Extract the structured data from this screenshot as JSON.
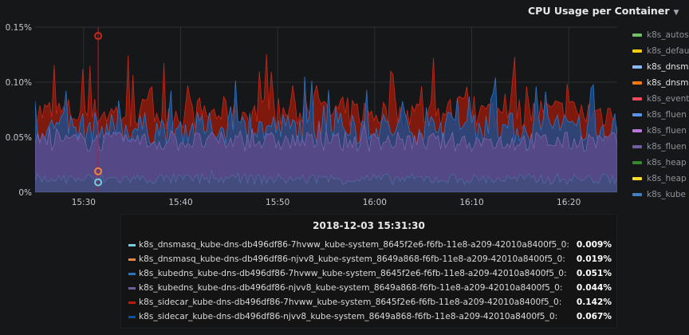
{
  "panel": {
    "title": "CPU Usage per Container",
    "caret_icon": "caret-down-icon"
  },
  "chart_data": {
    "type": "area",
    "ylim": [
      0,
      0.15
    ],
    "y_unit": "%",
    "x_range": [
      "2018-12-03 15:25:00",
      "2018-12-03 16:25:00"
    ],
    "x_ticks": [
      "15:30",
      "15:40",
      "15:50",
      "16:00",
      "16:10",
      "16:20"
    ],
    "y_ticks": [
      "0%",
      "0.05%",
      "0.10%",
      "0.15%"
    ],
    "grid": true,
    "legend_position": "right",
    "series_colors": [
      "#73bf69",
      "#f2cc0c",
      "#8ab8ff",
      "#ff780a",
      "#f2495c",
      "#5794f2",
      "#b877d9",
      "#705da0",
      "#37872d",
      "#fade2a",
      "#447ebc"
    ],
    "hover_time": "2018-12-03 15:31:30"
  },
  "legend": {
    "items": [
      {
        "label": "k8s_autos",
        "color": "#73bf69",
        "bold": false
      },
      {
        "label": "k8s_defau",
        "color": "#f2cc0c",
        "bold": false
      },
      {
        "label": "k8s_dnsm",
        "color": "#8ab8ff",
        "bold": true
      },
      {
        "label": "k8s_dnsm",
        "color": "#ff780a",
        "bold": true
      },
      {
        "label": "k8s_event",
        "color": "#f2495c",
        "bold": false
      },
      {
        "label": "k8s_fluen",
        "color": "#5794f2",
        "bold": false
      },
      {
        "label": "k8s_fluen",
        "color": "#b877d9",
        "bold": false
      },
      {
        "label": "k8s_fluen",
        "color": "#705da0",
        "bold": false
      },
      {
        "label": "k8s_heap",
        "color": "#37872d",
        "bold": false
      },
      {
        "label": "k8s_heap",
        "color": "#fade2a",
        "bold": false
      },
      {
        "label": "k8s_kube",
        "color": "#447ebc",
        "bold": false
      }
    ]
  },
  "tooltip": {
    "time": "2018-12-03 15:31:30",
    "rows": [
      {
        "color": "#6ed0e0",
        "name": "k8s_dnsmasq_kube-dns-db496df86-7hvww_kube-system_8645f2e6-f6fb-11e8-a209-42010a8400f5_0:",
        "value": "0.009%"
      },
      {
        "color": "#ef843c",
        "name": "k8s_dnsmasq_kube-dns-db496df86-njvv8_kube-system_8649a868-f6fb-11e8-a209-42010a8400f5_0:",
        "value": "0.019%"
      },
      {
        "color": "#1f78c1",
        "name": "k8s_kubedns_kube-dns-db496df86-7hvww_kube-system_8645f2e6-f6fb-11e8-a209-42010a8400f5_0:",
        "value": "0.051%"
      },
      {
        "color": "#705da0",
        "name": "k8s_kubedns_kube-dns-db496df86-njvv8_kube-system_8649a868-f6fb-11e8-a209-42010a8400f5_0:",
        "value": "0.044%"
      },
      {
        "color": "#bf1b00",
        "name": "k8s_sidecar_kube-dns-db496df86-7hvww_kube-system_8645f2e6-f6fb-11e8-a209-42010a8400f5_0:",
        "value": "0.142%"
      },
      {
        "color": "#0a50a1",
        "name": "k8s_sidecar_kube-dns-db496df86-njvv8_kube-system_8649a868-f6fb-11e8-a209-42010a8400f5_0:",
        "value": "0.067%"
      }
    ]
  }
}
